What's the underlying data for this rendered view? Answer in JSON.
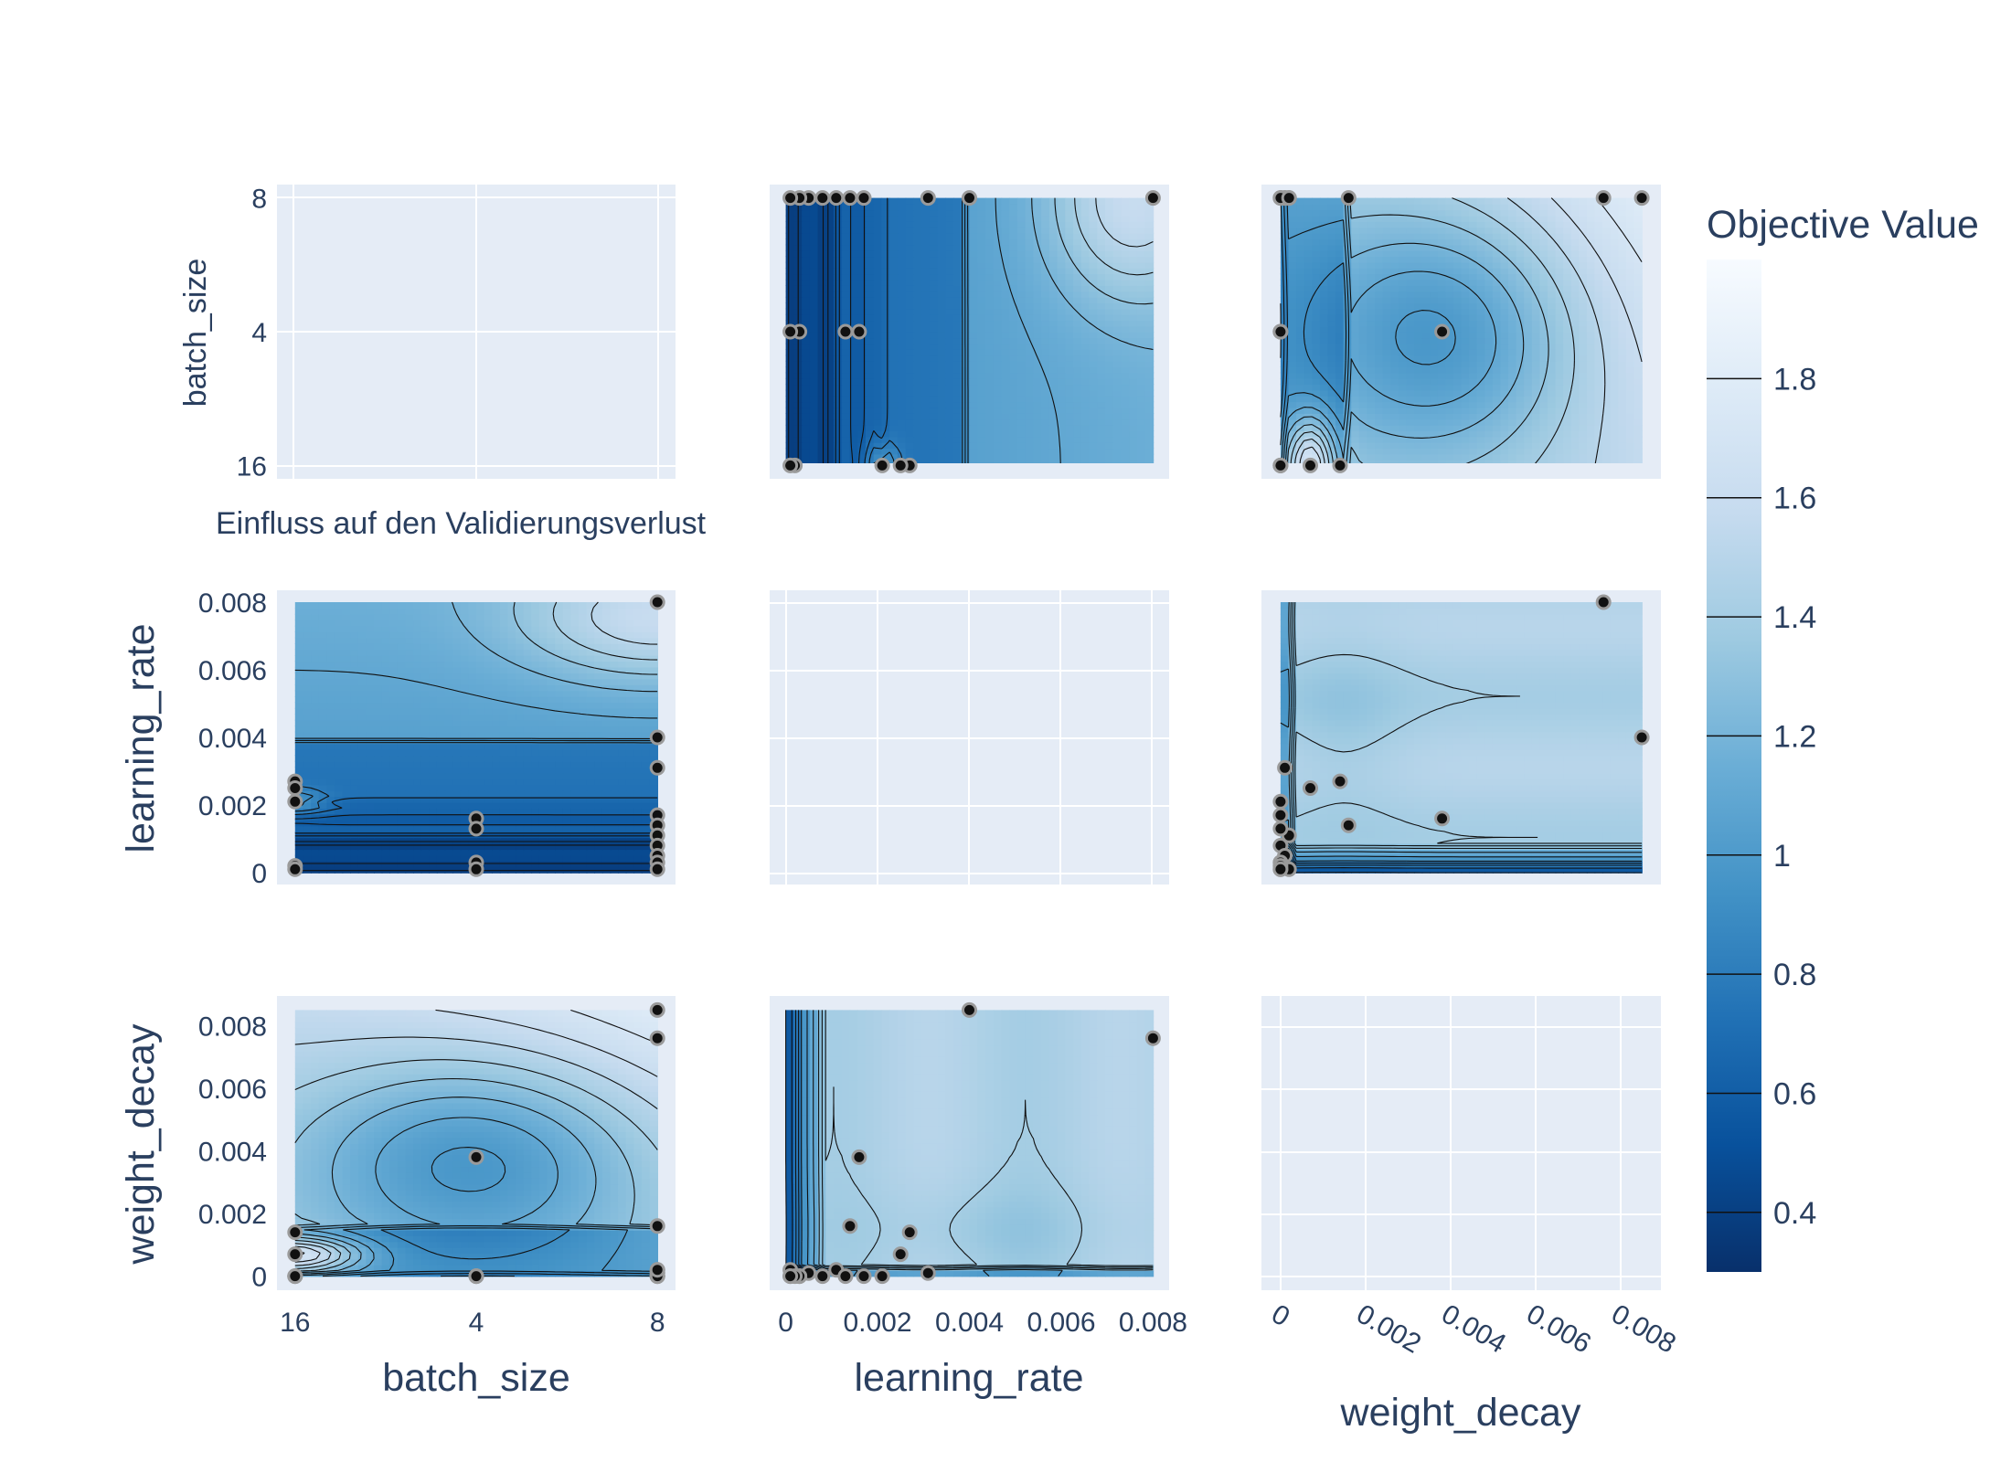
{
  "chart_data": {
    "type": "contour",
    "annotation": "Einfluss auf den Validierungsverlust",
    "params": [
      "batch_size",
      "learning_rate",
      "weight_decay"
    ],
    "axes": {
      "batch_size": {
        "type": "category",
        "categories": [
          "16",
          "4",
          "8"
        ],
        "ticks": [
          "16",
          "4",
          "8"
        ],
        "range": [
          -0.1,
          2.1
        ]
      },
      "learning_rate": {
        "type": "linear",
        "range": [
          -0.00035,
          0.00835
        ],
        "ticks": [
          0,
          0.002,
          0.004,
          0.006,
          0.008
        ],
        "tick_labels": [
          "0",
          "0.002",
          "0.004",
          "0.006",
          "0.008"
        ]
      },
      "weight_decay": {
        "type": "linear",
        "range": [
          -0.00045,
          0.00895
        ],
        "ticks": [
          0,
          0.002,
          0.004,
          0.006,
          0.008
        ],
        "tick_labels": [
          "0",
          "0.002",
          "0.004",
          "0.006",
          "0.008"
        ]
      }
    },
    "colorbar": {
      "title": "Objective Value",
      "range": [
        0.3,
        2.0
      ],
      "ticks": [
        0.4,
        0.6,
        0.8,
        1,
        1.2,
        1.4,
        1.6,
        1.8
      ],
      "tick_labels": [
        "0.4",
        "0.6",
        "0.8",
        "1",
        "1.2",
        "1.4",
        "1.6",
        "1.8"
      ],
      "colorscale": [
        "#08306b",
        "#08519c",
        "#2171b5",
        "#4292c6",
        "#6baed6",
        "#9ecae1",
        "#c6dbef",
        "#deebf7",
        "#f7fbff"
      ]
    },
    "trials": [
      {
        "batch_size": "8",
        "learning_rate": 0.008,
        "weight_decay": 0.0076
      },
      {
        "batch_size": "8",
        "learning_rate": 0.004,
        "weight_decay": 0.0085
      },
      {
        "batch_size": "8",
        "learning_rate": 0.0031,
        "weight_decay": 0.0001
      },
      {
        "batch_size": "8",
        "learning_rate": 0.0017,
        "weight_decay": 0.0
      },
      {
        "batch_size": "8",
        "learning_rate": 0.0014,
        "weight_decay": 0.0016
      },
      {
        "batch_size": "8",
        "learning_rate": 0.0011,
        "weight_decay": 0.0002
      },
      {
        "batch_size": "8",
        "learning_rate": 0.0008,
        "weight_decay": 0.0
      },
      {
        "batch_size": "8",
        "learning_rate": 0.0005,
        "weight_decay": 0.0001
      },
      {
        "batch_size": "8",
        "learning_rate": 0.0003,
        "weight_decay": 0.0
      },
      {
        "batch_size": "8",
        "learning_rate": 0.0001,
        "weight_decay": 0.0002
      },
      {
        "batch_size": "4",
        "learning_rate": 0.0016,
        "weight_decay": 0.0038
      },
      {
        "batch_size": "4",
        "learning_rate": 0.0013,
        "weight_decay": 0.0
      },
      {
        "batch_size": "4",
        "learning_rate": 0.0003,
        "weight_decay": 0.0
      },
      {
        "batch_size": "4",
        "learning_rate": 0.0001,
        "weight_decay": 0.0
      },
      {
        "batch_size": "16",
        "learning_rate": 0.0027,
        "weight_decay": 0.0014
      },
      {
        "batch_size": "16",
        "learning_rate": 0.0025,
        "weight_decay": 0.0007
      },
      {
        "batch_size": "16",
        "learning_rate": 0.0021,
        "weight_decay": 0.0
      },
      {
        "batch_size": "16",
        "learning_rate": 0.0002,
        "weight_decay": 0.0
      },
      {
        "batch_size": "16",
        "learning_rate": 0.0001,
        "weight_decay": 0.0
      }
    ]
  }
}
